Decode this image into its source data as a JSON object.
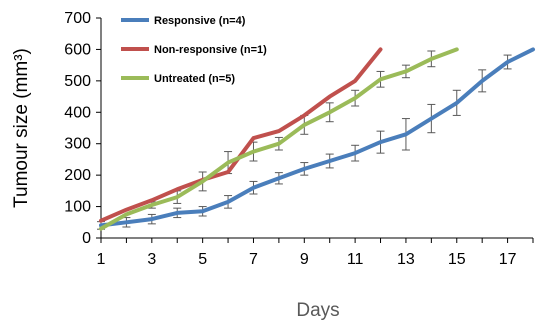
{
  "chart_data": {
    "type": "line",
    "xlabel": "Days",
    "ylabel": "Tumour size (mm³)",
    "xlim": [
      1,
      18
    ],
    "ylim": [
      0,
      700
    ],
    "x_ticks": [
      "1",
      "3",
      "5",
      "7",
      "9",
      "11",
      "13",
      "15",
      "17"
    ],
    "y_ticks": [
      "0",
      "100",
      "200",
      "300",
      "400",
      "500",
      "600",
      "700"
    ],
    "grid": false,
    "legend_position": "top-left",
    "series": [
      {
        "name": "Responsive (n=4)",
        "color": "#4a7ebb",
        "x": [
          1,
          2,
          3,
          4,
          5,
          6,
          7,
          8,
          9,
          10,
          11,
          12,
          13,
          14,
          15,
          16,
          17,
          18
        ],
        "values": [
          40,
          50,
          60,
          80,
          85,
          115,
          160,
          190,
          220,
          245,
          270,
          305,
          330,
          380,
          430,
          500,
          560,
          600
        ],
        "error": [
          12,
          15,
          15,
          15,
          15,
          20,
          20,
          18,
          20,
          22,
          25,
          35,
          50,
          45,
          40,
          35,
          22,
          0
        ]
      },
      {
        "name": "Non-responsive (n=1)",
        "color": "#c0504d",
        "x": [
          1,
          2,
          3,
          4,
          5,
          6,
          7,
          8,
          9,
          10,
          11,
          12
        ],
        "values": [
          55,
          90,
          120,
          155,
          185,
          210,
          318,
          340,
          390,
          450,
          500,
          600
        ]
      },
      {
        "name": "Untreated (n=5)",
        "color": "#9bbb59",
        "x": [
          1,
          2,
          3,
          4,
          5,
          6,
          7,
          8,
          9,
          10,
          11,
          12,
          13,
          14,
          15
        ],
        "values": [
          30,
          75,
          105,
          130,
          180,
          240,
          275,
          300,
          360,
          400,
          445,
          505,
          530,
          570,
          600
        ],
        "error": [
          0,
          0,
          10,
          20,
          30,
          35,
          30,
          20,
          30,
          30,
          25,
          25,
          20,
          25,
          0
        ]
      }
    ]
  }
}
